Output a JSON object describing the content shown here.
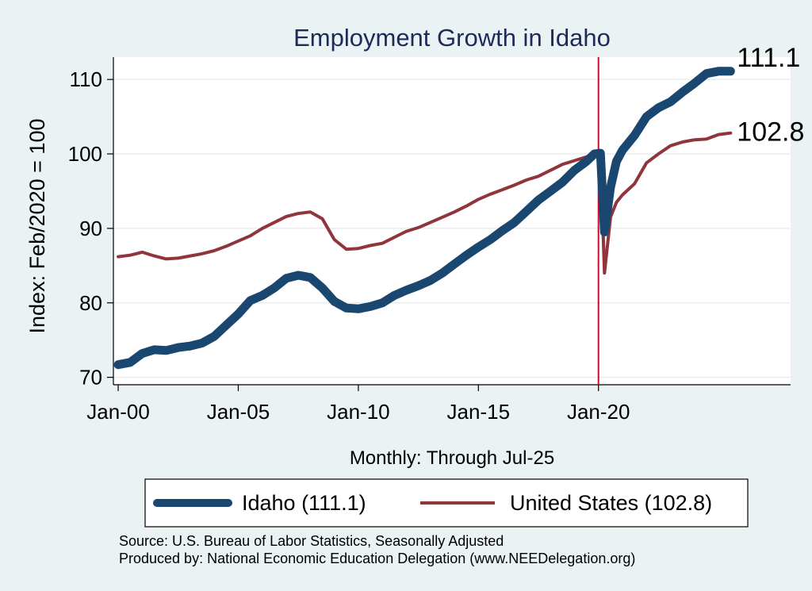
{
  "chart_data": {
    "type": "line",
    "title": "Employment Growth in Idaho",
    "ylabel": "Index: Feb/2020 = 100",
    "xlabel": "Monthly: Through Jul-25",
    "x_ticks": [
      "Jan-00",
      "Jan-05",
      "Jan-10",
      "Jan-15",
      "Jan-20"
    ],
    "x_tick_years": [
      2000,
      2005,
      2010,
      2015,
      2020
    ],
    "y_ticks": [
      70,
      80,
      90,
      100,
      110
    ],
    "ylim": [
      69,
      113
    ],
    "xlim": [
      1999.8,
      2028.0
    ],
    "vline_x": 2020.0,
    "grid": true,
    "legend_position": "bottom",
    "end_labels": [
      "111.1",
      "102.8"
    ],
    "series": [
      {
        "name": "Idaho (111.1)",
        "color": "#1a476f",
        "points": [
          [
            2000.0,
            71.7
          ],
          [
            2000.5,
            72.0
          ],
          [
            2001.0,
            73.2
          ],
          [
            2001.5,
            73.7
          ],
          [
            2002.0,
            73.6
          ],
          [
            2002.5,
            74.0
          ],
          [
            2003.0,
            74.2
          ],
          [
            2003.5,
            74.6
          ],
          [
            2004.0,
            75.5
          ],
          [
            2004.5,
            77.0
          ],
          [
            2005.0,
            78.5
          ],
          [
            2005.5,
            80.3
          ],
          [
            2006.0,
            81.0
          ],
          [
            2006.5,
            82.0
          ],
          [
            2007.0,
            83.3
          ],
          [
            2007.5,
            83.7
          ],
          [
            2008.0,
            83.4
          ],
          [
            2008.5,
            82.0
          ],
          [
            2009.0,
            80.2
          ],
          [
            2009.5,
            79.3
          ],
          [
            2010.0,
            79.2
          ],
          [
            2010.5,
            79.5
          ],
          [
            2011.0,
            80.0
          ],
          [
            2011.5,
            81.0
          ],
          [
            2012.0,
            81.7
          ],
          [
            2012.5,
            82.3
          ],
          [
            2013.0,
            83.0
          ],
          [
            2013.5,
            84.0
          ],
          [
            2014.0,
            85.2
          ],
          [
            2014.5,
            86.4
          ],
          [
            2015.0,
            87.5
          ],
          [
            2015.5,
            88.5
          ],
          [
            2016.0,
            89.7
          ],
          [
            2016.5,
            90.8
          ],
          [
            2017.0,
            92.3
          ],
          [
            2017.5,
            93.8
          ],
          [
            2018.0,
            95.0
          ],
          [
            2018.5,
            96.2
          ],
          [
            2019.0,
            97.8
          ],
          [
            2019.5,
            99.0
          ],
          [
            2019.83,
            100.0
          ],
          [
            2020.08,
            100.1
          ],
          [
            2020.25,
            89.5
          ],
          [
            2020.5,
            95.5
          ],
          [
            2020.75,
            99.0
          ],
          [
            2021.0,
            100.5
          ],
          [
            2021.5,
            102.5
          ],
          [
            2022.0,
            105.0
          ],
          [
            2022.5,
            106.2
          ],
          [
            2023.0,
            107.0
          ],
          [
            2023.5,
            108.3
          ],
          [
            2024.0,
            109.5
          ],
          [
            2024.5,
            110.8
          ],
          [
            2025.0,
            111.1
          ],
          [
            2025.5,
            111.1
          ]
        ]
      },
      {
        "name": "United States (102.8)",
        "color": "#90353b",
        "points": [
          [
            2000.0,
            86.2
          ],
          [
            2000.5,
            86.4
          ],
          [
            2001.0,
            86.8
          ],
          [
            2001.5,
            86.3
          ],
          [
            2002.0,
            85.9
          ],
          [
            2002.5,
            86.0
          ],
          [
            2003.0,
            86.3
          ],
          [
            2003.5,
            86.6
          ],
          [
            2004.0,
            87.0
          ],
          [
            2004.5,
            87.6
          ],
          [
            2005.0,
            88.3
          ],
          [
            2005.5,
            89.0
          ],
          [
            2006.0,
            90.0
          ],
          [
            2006.5,
            90.8
          ],
          [
            2007.0,
            91.6
          ],
          [
            2007.5,
            92.0
          ],
          [
            2008.0,
            92.2
          ],
          [
            2008.5,
            91.3
          ],
          [
            2009.0,
            88.5
          ],
          [
            2009.5,
            87.2
          ],
          [
            2010.0,
            87.3
          ],
          [
            2010.5,
            87.7
          ],
          [
            2011.0,
            88.0
          ],
          [
            2011.5,
            88.8
          ],
          [
            2012.0,
            89.6
          ],
          [
            2012.5,
            90.1
          ],
          [
            2013.0,
            90.8
          ],
          [
            2013.5,
            91.5
          ],
          [
            2014.0,
            92.2
          ],
          [
            2014.5,
            93.0
          ],
          [
            2015.0,
            93.9
          ],
          [
            2015.5,
            94.6
          ],
          [
            2016.0,
            95.2
          ],
          [
            2016.5,
            95.8
          ],
          [
            2017.0,
            96.5
          ],
          [
            2017.5,
            97.0
          ],
          [
            2018.0,
            97.8
          ],
          [
            2018.5,
            98.6
          ],
          [
            2019.0,
            99.1
          ],
          [
            2019.5,
            99.6
          ],
          [
            2019.83,
            100.0
          ],
          [
            2020.08,
            100.2
          ],
          [
            2020.25,
            84.0
          ],
          [
            2020.5,
            91.5
          ],
          [
            2020.75,
            93.5
          ],
          [
            2021.0,
            94.5
          ],
          [
            2021.5,
            96.0
          ],
          [
            2022.0,
            98.8
          ],
          [
            2022.5,
            100.0
          ],
          [
            2023.0,
            101.1
          ],
          [
            2023.5,
            101.6
          ],
          [
            2024.0,
            101.9
          ],
          [
            2024.5,
            102.0
          ],
          [
            2025.0,
            102.6
          ],
          [
            2025.5,
            102.8
          ]
        ]
      }
    ],
    "source_lines": [
      "Source: U.S. Bureau of Labor Statistics, Seasonally Adjusted",
      "Produced by: National Economic Education Delegation (www.NEEDelegation.org)"
    ]
  }
}
